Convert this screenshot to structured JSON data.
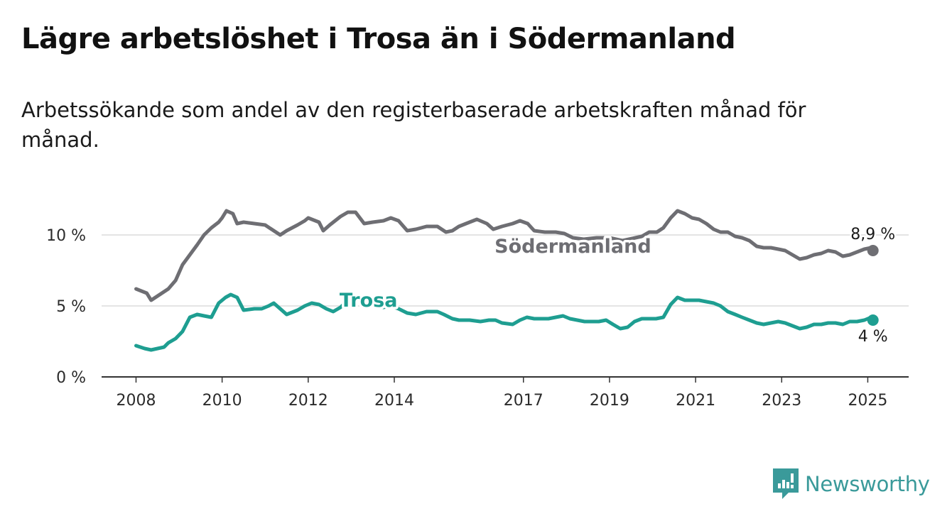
{
  "title": "Lägre arbetslöshet i Trosa än i Södermanland",
  "subtitle": "Arbetssökande som andel av den registerbaserade arbetskraften månad för månad.",
  "brand": {
    "name": "Newsworthy",
    "icon": "newsworthy-logo-icon",
    "color": "#3a9a9a"
  },
  "chart_data": {
    "type": "line",
    "x_unit": "year (monthly data)",
    "x_ticks": [
      2008,
      2010,
      2012,
      2014,
      2017,
      2019,
      2021,
      2023,
      2025
    ],
    "y_ticks": [
      {
        "value": 0,
        "label": "0 %"
      },
      {
        "value": 5,
        "label": "5 %"
      },
      {
        "value": 10,
        "label": "10 %"
      }
    ],
    "xlim": [
      2007.2,
      2025.95
    ],
    "ylim": [
      0,
      12.5
    ],
    "grid": true,
    "legend": "inline labels",
    "series": [
      {
        "name": "Södermanland",
        "color": "#6e6e73",
        "end_label": "8,9 %",
        "points": [
          [
            2008.0,
            6.2
          ],
          [
            2008.25,
            5.9
          ],
          [
            2008.35,
            5.4
          ],
          [
            2008.5,
            5.7
          ],
          [
            2008.75,
            6.2
          ],
          [
            2008.92,
            6.8
          ],
          [
            2009.08,
            7.9
          ],
          [
            2009.25,
            8.6
          ],
          [
            2009.42,
            9.3
          ],
          [
            2009.58,
            10.0
          ],
          [
            2009.75,
            10.5
          ],
          [
            2009.92,
            10.9
          ],
          [
            2010.0,
            11.2
          ],
          [
            2010.1,
            11.7
          ],
          [
            2010.25,
            11.5
          ],
          [
            2010.35,
            10.8
          ],
          [
            2010.5,
            10.9
          ],
          [
            2010.75,
            10.8
          ],
          [
            2011.0,
            10.7
          ],
          [
            2011.2,
            10.3
          ],
          [
            2011.35,
            10.0
          ],
          [
            2011.5,
            10.3
          ],
          [
            2011.75,
            10.7
          ],
          [
            2011.92,
            11.0
          ],
          [
            2012.0,
            11.2
          ],
          [
            2012.25,
            10.9
          ],
          [
            2012.35,
            10.3
          ],
          [
            2012.5,
            10.7
          ],
          [
            2012.75,
            11.3
          ],
          [
            2012.92,
            11.6
          ],
          [
            2013.1,
            11.6
          ],
          [
            2013.3,
            10.8
          ],
          [
            2013.5,
            10.9
          ],
          [
            2013.75,
            11.0
          ],
          [
            2013.92,
            11.2
          ],
          [
            2014.1,
            11.0
          ],
          [
            2014.3,
            10.3
          ],
          [
            2014.5,
            10.4
          ],
          [
            2014.75,
            10.6
          ],
          [
            2015.0,
            10.6
          ],
          [
            2015.2,
            10.2
          ],
          [
            2015.35,
            10.3
          ],
          [
            2015.5,
            10.6
          ],
          [
            2015.75,
            10.9
          ],
          [
            2015.92,
            11.1
          ],
          [
            2016.15,
            10.8
          ],
          [
            2016.3,
            10.4
          ],
          [
            2016.5,
            10.6
          ],
          [
            2016.75,
            10.8
          ],
          [
            2016.92,
            11.0
          ],
          [
            2017.1,
            10.8
          ],
          [
            2017.25,
            10.3
          ],
          [
            2017.5,
            10.2
          ],
          [
            2017.75,
            10.2
          ],
          [
            2017.95,
            10.1
          ],
          [
            2018.15,
            9.8
          ],
          [
            2018.4,
            9.7
          ],
          [
            2018.7,
            9.8
          ],
          [
            2019.0,
            9.8
          ],
          [
            2019.3,
            9.6
          ],
          [
            2019.6,
            9.8
          ],
          [
            2019.75,
            9.9
          ],
          [
            2019.92,
            10.2
          ],
          [
            2020.1,
            10.2
          ],
          [
            2020.25,
            10.5
          ],
          [
            2020.42,
            11.2
          ],
          [
            2020.58,
            11.7
          ],
          [
            2020.75,
            11.5
          ],
          [
            2020.92,
            11.2
          ],
          [
            2021.08,
            11.1
          ],
          [
            2021.25,
            10.8
          ],
          [
            2021.42,
            10.4
          ],
          [
            2021.58,
            10.2
          ],
          [
            2021.75,
            10.2
          ],
          [
            2021.92,
            9.9
          ],
          [
            2022.08,
            9.8
          ],
          [
            2022.25,
            9.6
          ],
          [
            2022.42,
            9.2
          ],
          [
            2022.58,
            9.1
          ],
          [
            2022.75,
            9.1
          ],
          [
            2022.92,
            9.0
          ],
          [
            2023.08,
            8.9
          ],
          [
            2023.25,
            8.6
          ],
          [
            2023.42,
            8.3
          ],
          [
            2023.58,
            8.4
          ],
          [
            2023.75,
            8.6
          ],
          [
            2023.92,
            8.7
          ],
          [
            2024.08,
            8.9
          ],
          [
            2024.25,
            8.8
          ],
          [
            2024.42,
            8.5
          ],
          [
            2024.58,
            8.6
          ],
          [
            2024.75,
            8.8
          ],
          [
            2024.92,
            9.0
          ],
          [
            2025.08,
            9.1
          ],
          [
            2025.12,
            8.9
          ]
        ]
      },
      {
        "name": "Trosa",
        "color": "#1e9e91",
        "end_label": "4 %",
        "points": [
          [
            2008.0,
            2.2
          ],
          [
            2008.2,
            2.0
          ],
          [
            2008.35,
            1.9
          ],
          [
            2008.5,
            2.0
          ],
          [
            2008.65,
            2.1
          ],
          [
            2008.75,
            2.4
          ],
          [
            2008.92,
            2.7
          ],
          [
            2009.08,
            3.2
          ],
          [
            2009.25,
            4.2
          ],
          [
            2009.42,
            4.4
          ],
          [
            2009.58,
            4.3
          ],
          [
            2009.75,
            4.2
          ],
          [
            2009.92,
            5.2
          ],
          [
            2010.08,
            5.6
          ],
          [
            2010.2,
            5.8
          ],
          [
            2010.35,
            5.6
          ],
          [
            2010.5,
            4.7
          ],
          [
            2010.75,
            4.8
          ],
          [
            2010.92,
            4.8
          ],
          [
            2011.08,
            5.0
          ],
          [
            2011.2,
            5.2
          ],
          [
            2011.35,
            4.8
          ],
          [
            2011.5,
            4.4
          ],
          [
            2011.75,
            4.7
          ],
          [
            2011.92,
            5.0
          ],
          [
            2012.08,
            5.2
          ],
          [
            2012.25,
            5.1
          ],
          [
            2012.42,
            4.8
          ],
          [
            2012.58,
            4.6
          ],
          [
            2012.75,
            4.9
          ],
          [
            2012.92,
            5.4
          ],
          [
            2013.08,
            5.7
          ],
          [
            2013.25,
            5.4
          ],
          [
            2013.5,
            5.2
          ],
          [
            2013.75,
            4.9
          ],
          [
            2013.92,
            5.0
          ],
          [
            2014.1,
            4.8
          ],
          [
            2014.3,
            4.5
          ],
          [
            2014.5,
            4.4
          ],
          [
            2014.75,
            4.6
          ],
          [
            2015.0,
            4.6
          ],
          [
            2015.15,
            4.4
          ],
          [
            2015.35,
            4.1
          ],
          [
            2015.5,
            4.0
          ],
          [
            2015.75,
            4.0
          ],
          [
            2016.0,
            3.9
          ],
          [
            2016.2,
            4.0
          ],
          [
            2016.35,
            4.0
          ],
          [
            2016.5,
            3.8
          ],
          [
            2016.75,
            3.7
          ],
          [
            2016.92,
            4.0
          ],
          [
            2017.08,
            4.2
          ],
          [
            2017.25,
            4.1
          ],
          [
            2017.42,
            4.1
          ],
          [
            2017.58,
            4.1
          ],
          [
            2017.75,
            4.2
          ],
          [
            2017.92,
            4.3
          ],
          [
            2018.08,
            4.1
          ],
          [
            2018.25,
            4.0
          ],
          [
            2018.42,
            3.9
          ],
          [
            2018.58,
            3.9
          ],
          [
            2018.75,
            3.9
          ],
          [
            2018.92,
            4.0
          ],
          [
            2019.08,
            3.7
          ],
          [
            2019.25,
            3.4
          ],
          [
            2019.42,
            3.5
          ],
          [
            2019.58,
            3.9
          ],
          [
            2019.75,
            4.1
          ],
          [
            2019.92,
            4.1
          ],
          [
            2020.08,
            4.1
          ],
          [
            2020.25,
            4.2
          ],
          [
            2020.42,
            5.1
          ],
          [
            2020.58,
            5.6
          ],
          [
            2020.75,
            5.4
          ],
          [
            2020.92,
            5.4
          ],
          [
            2021.08,
            5.4
          ],
          [
            2021.25,
            5.3
          ],
          [
            2021.42,
            5.2
          ],
          [
            2021.58,
            5.0
          ],
          [
            2021.75,
            4.6
          ],
          [
            2021.92,
            4.4
          ],
          [
            2022.08,
            4.2
          ],
          [
            2022.25,
            4.0
          ],
          [
            2022.42,
            3.8
          ],
          [
            2022.58,
            3.7
          ],
          [
            2022.75,
            3.8
          ],
          [
            2022.92,
            3.9
          ],
          [
            2023.08,
            3.8
          ],
          [
            2023.25,
            3.6
          ],
          [
            2023.42,
            3.4
          ],
          [
            2023.58,
            3.5
          ],
          [
            2023.75,
            3.7
          ],
          [
            2023.92,
            3.7
          ],
          [
            2024.08,
            3.8
          ],
          [
            2024.25,
            3.8
          ],
          [
            2024.42,
            3.7
          ],
          [
            2024.58,
            3.9
          ],
          [
            2024.75,
            3.9
          ],
          [
            2024.92,
            4.0
          ],
          [
            2025.08,
            4.2
          ],
          [
            2025.12,
            4.0
          ]
        ]
      }
    ]
  }
}
